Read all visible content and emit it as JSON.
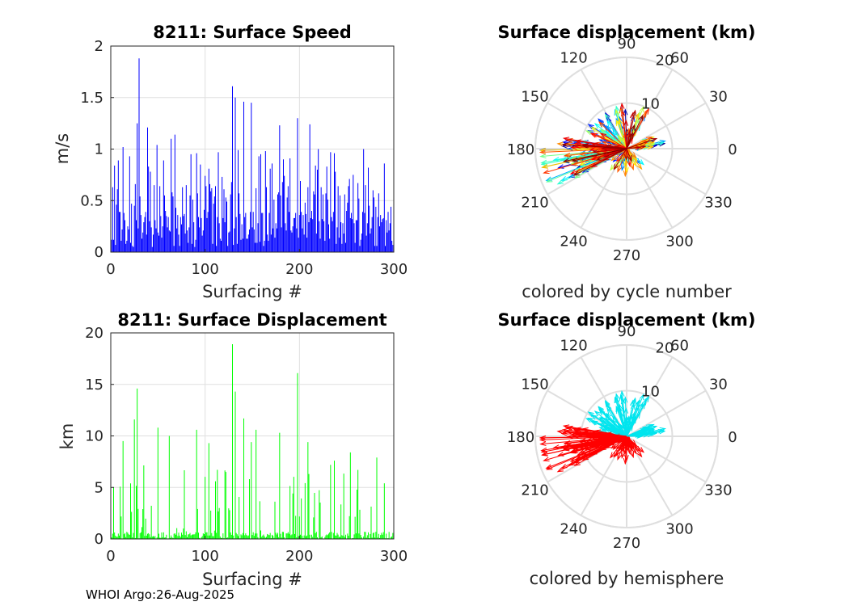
{
  "colors": {
    "speed_bars": "#0000ff",
    "displacement_bars": "#00ff00",
    "north_hemisphere": "#00e5ee",
    "south_hemisphere": "#ff0000",
    "grid": "#dfdfdf"
  },
  "footer": "WHOI Argo:26-Aug-2025",
  "chart_data": [
    {
      "id": "speed",
      "type": "bar",
      "title": "8211: Surface Speed",
      "xlabel": "Surfacing #",
      "ylabel": "m/s",
      "xlim": [
        0,
        300
      ],
      "ylim": [
        0,
        2
      ],
      "xticks": [
        0,
        100,
        200,
        300
      ],
      "yticks": [
        0,
        0.5,
        1,
        1.5,
        2
      ],
      "xtick_labels": [
        "0",
        "100",
        "200",
        "300"
      ],
      "ytick_labels": [
        "0",
        "0.5",
        "1",
        "1.5",
        "2"
      ],
      "grid": true,
      "highlighted_points": [
        [
          29,
          1.88
        ],
        [
          128,
          1.61
        ],
        [
          131,
          1.5
        ],
        [
          140,
          1.46
        ],
        [
          148,
          1.45
        ],
        [
          197,
          1.3
        ],
        [
          178,
          1.23
        ],
        [
          27,
          1.25
        ],
        [
          210,
          1.24
        ],
        [
          38,
          1.21
        ],
        [
          67,
          1.14
        ],
        [
          63,
          1.1
        ],
        [
          12,
          1.02
        ],
        [
          48,
          1.04
        ]
      ],
      "samples": []
    },
    {
      "id": "displacement",
      "type": "bar",
      "title": "8211: Surface Displacement",
      "xlabel": "Surfacing #",
      "ylabel": "km",
      "xlim": [
        0,
        300
      ],
      "ylim": [
        0,
        20
      ],
      "xticks": [
        0,
        100,
        200,
        300
      ],
      "yticks": [
        0,
        5,
        10,
        15,
        20
      ],
      "xtick_labels": [
        "0",
        "100",
        "200",
        "300"
      ],
      "ytick_labels": [
        "0",
        "5",
        "10",
        "15",
        "20"
      ],
      "grid": true,
      "highlighted_points": [
        [
          128,
          18.9
        ],
        [
          131,
          14.3
        ],
        [
          27,
          14.6
        ],
        [
          197,
          16.1
        ],
        [
          24,
          11.6
        ],
        [
          140,
          11.7
        ],
        [
          49,
          10.8
        ],
        [
          90,
          10.6
        ],
        [
          178,
          10.3
        ],
        [
          61,
          10.0
        ],
        [
          148,
          9.4
        ],
        [
          103,
          9.3
        ],
        [
          12,
          9.5
        ],
        [
          208,
          9.4
        ],
        [
          153,
          10.6
        ],
        [
          281,
          7.9
        ],
        [
          253,
          8.4
        ],
        [
          236,
          7.6
        ]
      ],
      "samples": []
    },
    {
      "id": "polar_cycle",
      "type": "polar",
      "title": "Surface displacement (km)",
      "subtitle": "colored by cycle number",
      "r_ticks": [
        10,
        20
      ],
      "r_tick_labels": [
        "10",
        "20"
      ],
      "r_max": 20,
      "angle_labels": [
        "0",
        "30",
        "60",
        "90",
        "120",
        "150",
        "180",
        "210",
        "240",
        "270",
        "300",
        "330"
      ],
      "color_by": "cycle number",
      "vectors": []
    },
    {
      "id": "polar_hemisphere",
      "type": "polar",
      "title": "Surface displacement (km)",
      "subtitle": "colored by hemisphere",
      "r_ticks": [
        10,
        20
      ],
      "r_tick_labels": [
        "10",
        "20"
      ],
      "r_max": 20,
      "angle_labels": [
        "0",
        "30",
        "60",
        "90",
        "120",
        "150",
        "180",
        "210",
        "240",
        "270",
        "300",
        "330"
      ],
      "color_by": "hemisphere",
      "vectors": []
    }
  ]
}
